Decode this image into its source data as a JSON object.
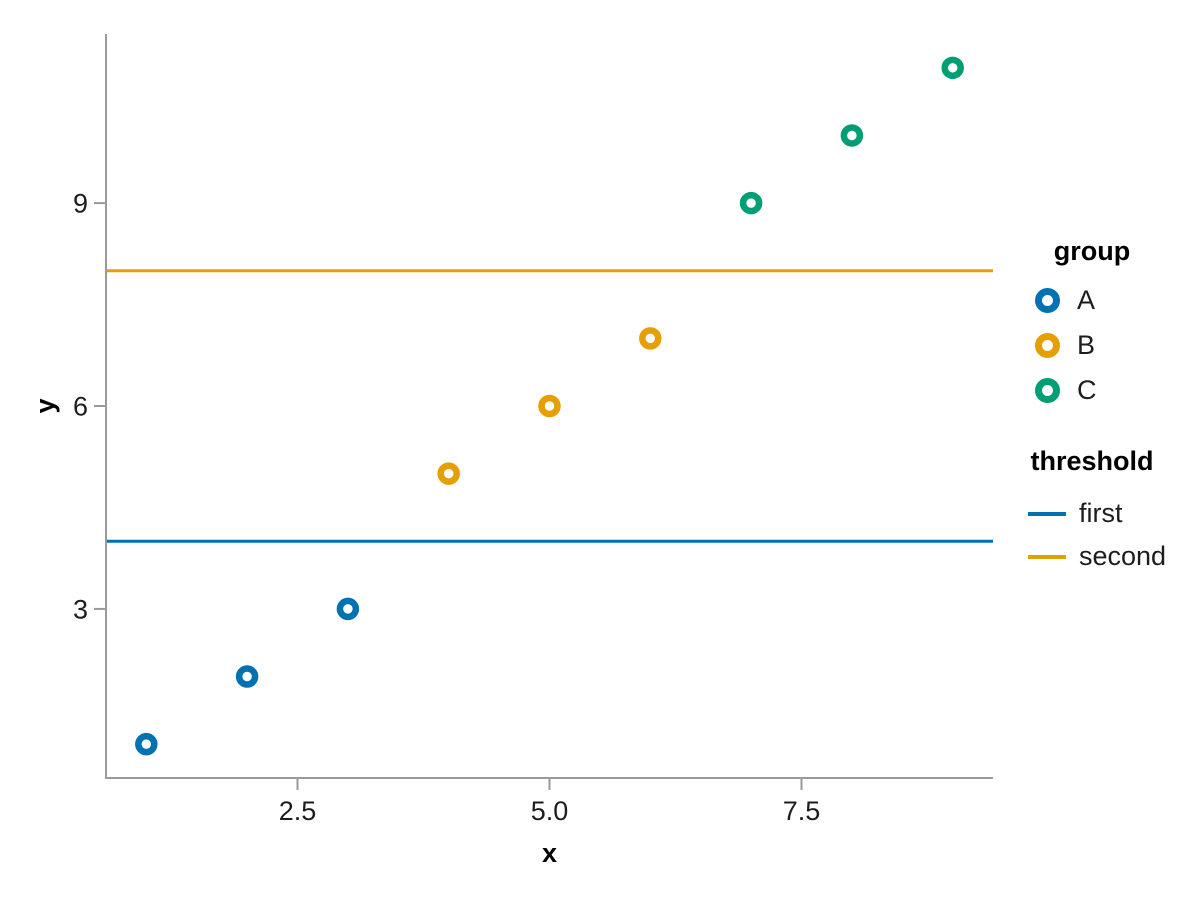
{
  "chart_data": {
    "type": "scatter",
    "title": "",
    "xlabel": "x",
    "ylabel": "y",
    "x_domain": [
      0.6,
      9.4
    ],
    "y_domain": [
      0.5,
      11.5
    ],
    "x_ticks": [
      {
        "value": 2.5,
        "label": "2.5"
      },
      {
        "value": 5.0,
        "label": "5.0"
      },
      {
        "value": 7.5,
        "label": "7.5"
      }
    ],
    "y_ticks": [
      {
        "value": 3,
        "label": "3"
      },
      {
        "value": 6,
        "label": "6"
      },
      {
        "value": 9,
        "label": "9"
      }
    ],
    "series": [
      {
        "name": "A",
        "color": "#0072B2",
        "points": [
          [
            1,
            1
          ],
          [
            2,
            2
          ],
          [
            3,
            3
          ]
        ]
      },
      {
        "name": "B",
        "color": "#E69F00",
        "points": [
          [
            4,
            5
          ],
          [
            5,
            6
          ],
          [
            6,
            7
          ]
        ]
      },
      {
        "name": "C",
        "color": "#009E73",
        "points": [
          [
            7,
            9
          ],
          [
            8,
            10
          ],
          [
            9,
            11
          ]
        ]
      }
    ],
    "hlines": [
      {
        "name": "first",
        "color": "#0072B2",
        "y": 4
      },
      {
        "name": "second",
        "color": "#E69F00",
        "y": 8
      }
    ],
    "legend": {
      "position": "right",
      "group_title": "group",
      "threshold_title": "threshold"
    },
    "grid": false,
    "marker_style": "open-circle",
    "axis_color": "#9a9a9a",
    "text_color": "#1d1d1d"
  }
}
